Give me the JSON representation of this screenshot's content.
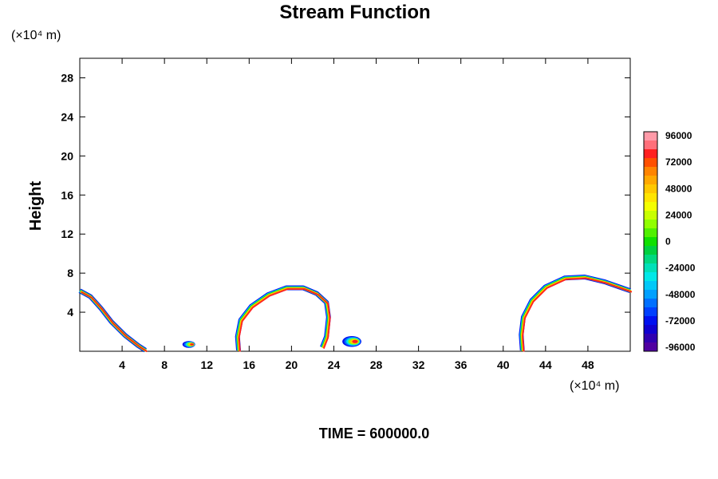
{
  "chart_data": {
    "type": "contour",
    "title": "Stream Function",
    "ylabel": "Height",
    "xlabel": "",
    "x_unit": "(×10⁴ m)",
    "y_unit": "(×10⁴ m)",
    "xlim": [
      0,
      52
    ],
    "ylim": [
      0,
      30
    ],
    "x_ticks": [
      4,
      8,
      12,
      16,
      20,
      24,
      28,
      32,
      36,
      40,
      44,
      48
    ],
    "y_ticks": [
      4,
      8,
      12,
      16,
      20,
      24,
      28
    ],
    "time_label": "TIME = 600000.0",
    "colorbar": {
      "min": -96000,
      "max": 96000,
      "step": 8000,
      "labels": [
        "96000",
        "72000",
        "48000",
        "24000",
        "0",
        "-24000",
        "-48000",
        "-72000",
        "-96000"
      ],
      "colors": [
        "#ff9aa8",
        "#ff6f7a",
        "#ff2020",
        "#ff5000",
        "#ff8400",
        "#ffa800",
        "#ffc800",
        "#ffe400",
        "#f4ff00",
        "#c8ff00",
        "#90ff00",
        "#50f000",
        "#10e000",
        "#00d040",
        "#00d880",
        "#00e0b8",
        "#00e8e8",
        "#00c8f8",
        "#00a0ff",
        "#0070ff",
        "#0040ff",
        "#0010f0",
        "#1000d0",
        "#3000b0",
        "#5000a0"
      ]
    },
    "features": [
      {
        "id": "left-edge",
        "outline": [
          [
            0,
            6.2
          ],
          [
            1,
            5.6
          ],
          [
            2,
            4.4
          ],
          [
            3,
            3.0
          ],
          [
            4.3,
            1.6
          ],
          [
            5.5,
            0.6
          ],
          [
            6.2,
            0.1
          ]
        ]
      },
      {
        "id": "spot-10",
        "center": [
          10.3,
          0.7
        ],
        "size": [
          0.6,
          0.35
        ]
      },
      {
        "id": "bubble-20",
        "outline": [
          [
            15,
            0.1
          ],
          [
            14.9,
            1.5
          ],
          [
            15.2,
            3.2
          ],
          [
            16.2,
            4.6
          ],
          [
            17.8,
            5.8
          ],
          [
            19.5,
            6.5
          ],
          [
            21.1,
            6.5
          ],
          [
            22.4,
            5.9
          ],
          [
            23.3,
            5.0
          ],
          [
            23.5,
            3.5
          ],
          [
            23.3,
            1.5
          ],
          [
            22.9,
            0.4
          ]
        ]
      },
      {
        "id": "spot-26",
        "center": [
          25.7,
          1.0
        ],
        "size": [
          0.9,
          0.55
        ]
      },
      {
        "id": "right-dome",
        "outline": [
          [
            41.8,
            0.1
          ],
          [
            41.7,
            1.7
          ],
          [
            41.9,
            3.5
          ],
          [
            42.7,
            5.2
          ],
          [
            44.0,
            6.6
          ],
          [
            45.8,
            7.5
          ],
          [
            47.7,
            7.6
          ],
          [
            49.6,
            7.1
          ],
          [
            51.2,
            6.5
          ],
          [
            52,
            6.2
          ]
        ]
      }
    ]
  }
}
